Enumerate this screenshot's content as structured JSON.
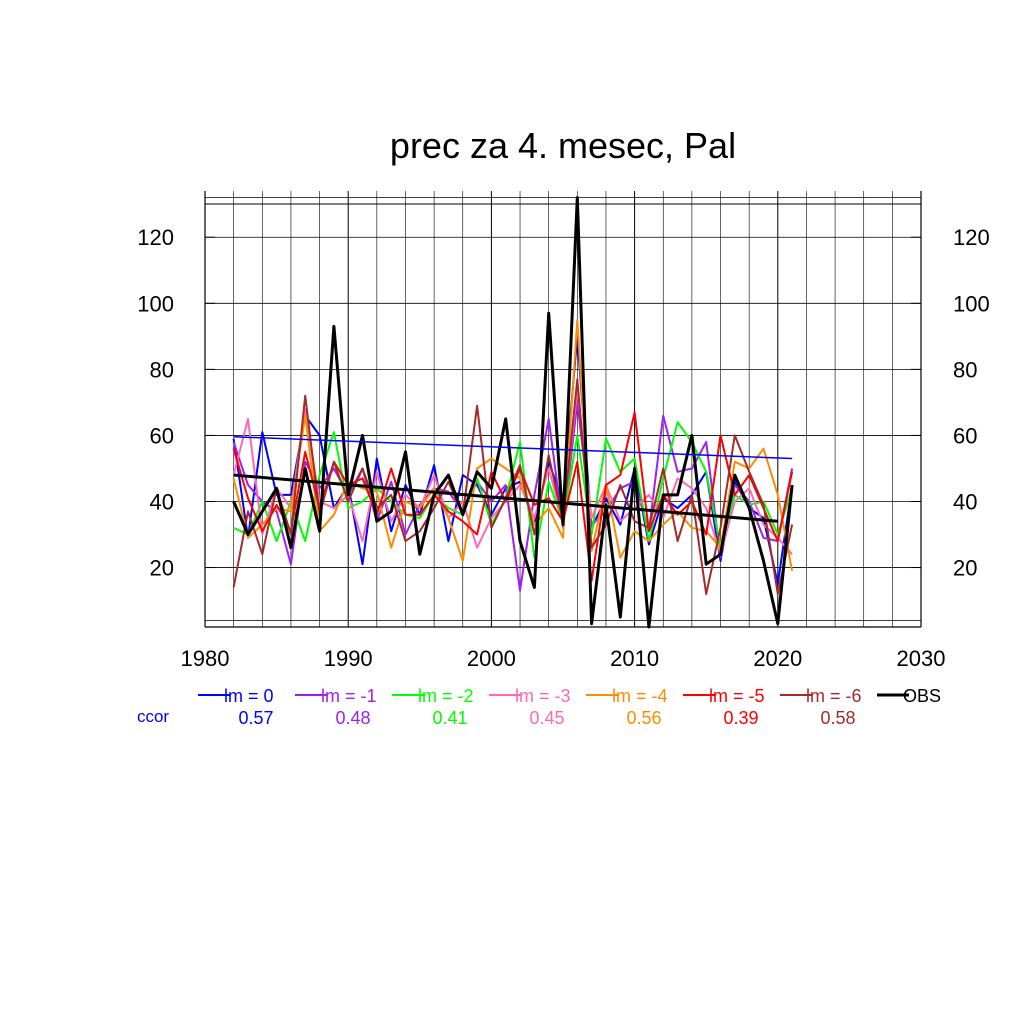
{
  "chart_data": {
    "type": "line",
    "title": "prec za 4. mesec, Pal",
    "xlim": [
      1980,
      2030
    ],
    "ylim": [
      2,
      134
    ],
    "x_ticks": [
      1980,
      1990,
      2000,
      2010,
      2020,
      2030
    ],
    "y_ticks": [
      20,
      40,
      60,
      80,
      100,
      120
    ],
    "grid": true,
    "legend_position": "bottom",
    "ccor_label": "ccor",
    "x": [
      1982,
      1983,
      1984,
      1985,
      1986,
      1987,
      1988,
      1989,
      1990,
      1991,
      1992,
      1993,
      1994,
      1995,
      1996,
      1997,
      1998,
      1999,
      2000,
      2001,
      2002,
      2003,
      2004,
      2005,
      2006,
      2007,
      2008,
      2009,
      2010,
      2011,
      2012,
      2013,
      2014,
      2015,
      2016,
      2017,
      2018,
      2019,
      2020,
      2021
    ],
    "series": [
      {
        "name": "lm = 0",
        "ccor": "0.57",
        "color": "#0000ff",
        "values": [
          59,
          29,
          61,
          42,
          42,
          66,
          60,
          38,
          45,
          21,
          53,
          31,
          45,
          36,
          51,
          28,
          48,
          45,
          36,
          44,
          46,
          33,
          52,
          40,
          90,
          32,
          41,
          33,
          50,
          27,
          41,
          38,
          42,
          49,
          22,
          46,
          38,
          35,
          15,
          45
        ]
      },
      {
        "name": "lm = -1",
        "ccor": "0.48",
        "color": "#a020f0",
        "values": [
          58,
          45,
          40,
          37,
          21,
          52,
          44,
          50,
          42,
          50,
          34,
          46,
          30,
          39,
          44,
          43,
          37,
          46,
          40,
          45,
          13,
          42,
          65,
          32,
          70,
          33,
          37,
          44,
          46,
          31,
          66,
          49,
          50,
          58,
          23,
          45,
          40,
          29,
          28,
          50
        ]
      },
      {
        "name": "lm = -2",
        "ccor": "0.41",
        "color": "#00ff00",
        "values": [
          32,
          30,
          40,
          28,
          40,
          28,
          48,
          61,
          38,
          40,
          44,
          40,
          36,
          35,
          42,
          38,
          36,
          47,
          33,
          41,
          58,
          23,
          46,
          34,
          60,
          30,
          59,
          49,
          53,
          28,
          47,
          64,
          58,
          49,
          26,
          42,
          39,
          40,
          30,
          44
        ]
      },
      {
        "name": "lm = -3",
        "ccor": "0.45",
        "color": "#ff69b4",
        "values": [
          48,
          65,
          30,
          44,
          38,
          68,
          40,
          38,
          42,
          28,
          49,
          34,
          42,
          38,
          48,
          35,
          40,
          26,
          35,
          40,
          45,
          35,
          50,
          34,
          74,
          35,
          45,
          34,
          38,
          42,
          35,
          47,
          44,
          38,
          24,
          40,
          44,
          33,
          29,
          24
        ]
      },
      {
        "name": "lm = -4",
        "ccor": "0.56",
        "color": "#ff8c00",
        "values": [
          47,
          29,
          33,
          38,
          37,
          66,
          31,
          36,
          46,
          44,
          43,
          26,
          40,
          38,
          44,
          35,
          22,
          50,
          53,
          50,
          47,
          33,
          38,
          29,
          95,
          25,
          45,
          23,
          31,
          28,
          33,
          37,
          32,
          31,
          26,
          52,
          50,
          56,
          42,
          19
        ]
      },
      {
        "name": "lm = -5",
        "ccor": "0.39",
        "color": "#ff0000",
        "values": [
          56,
          41,
          31,
          39,
          31,
          55,
          38,
          52,
          45,
          47,
          36,
          50,
          36,
          36,
          42,
          37,
          34,
          30,
          49,
          40,
          50,
          39,
          41,
          34,
          52,
          16,
          45,
          48,
          67,
          31,
          42,
          36,
          40,
          30,
          60,
          42,
          48,
          38,
          28,
          49
        ]
      },
      {
        "name": "lm = -6",
        "ccor": "0.58",
        "color": "#a52a2a",
        "values": [
          14,
          37,
          24,
          44,
          30,
          72,
          36,
          52,
          40,
          50,
          38,
          42,
          28,
          31,
          38,
          46,
          36,
          69,
          32,
          41,
          51,
          30,
          54,
          34,
          77,
          26,
          33,
          45,
          34,
          32,
          50,
          28,
          42,
          12,
          32,
          60,
          49,
          39,
          12,
          33
        ]
      },
      {
        "name": "OBS",
        "ccor": "",
        "color": "#000000",
        "values": [
          40,
          30,
          37,
          44,
          26,
          50,
          31,
          93,
          42,
          60,
          34,
          37,
          55,
          24,
          42,
          48,
          36,
          49,
          44,
          65,
          28,
          14,
          97,
          33,
          132,
          3,
          39,
          5,
          50,
          2,
          42,
          42,
          60,
          21,
          24,
          48,
          38,
          22,
          3,
          45
        ]
      }
    ],
    "trend_lines": [
      {
        "series": "lm = 0",
        "x": [
          1982,
          2021
        ],
        "y": [
          59.6,
          53
        ]
      },
      {
        "series": "OBS",
        "x": [
          1982,
          2020
        ],
        "y": [
          48,
          34
        ]
      }
    ]
  }
}
